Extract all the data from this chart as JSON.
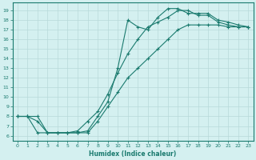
{
  "xlabel": "Humidex (Indice chaleur)",
  "ylabel": "",
  "xlim": [
    -0.5,
    23.5
  ],
  "ylim": [
    5.5,
    19.8
  ],
  "yticks": [
    6,
    7,
    8,
    9,
    10,
    11,
    12,
    13,
    14,
    15,
    16,
    17,
    18,
    19
  ],
  "xticks": [
    0,
    1,
    2,
    3,
    4,
    5,
    6,
    7,
    8,
    9,
    10,
    11,
    12,
    13,
    14,
    15,
    16,
    17,
    18,
    19,
    20,
    21,
    22,
    23
  ],
  "line_color": "#1a7a6e",
  "bg_color": "#d4f0f0",
  "grid_color": "#b8dada",
  "line1_x": [
    0,
    1,
    2,
    3,
    4,
    5,
    6,
    7,
    8,
    9,
    10,
    11,
    12,
    13,
    14,
    15,
    16,
    17,
    18,
    19,
    20,
    21,
    22,
    23
  ],
  "line1_y": [
    8.0,
    8.0,
    8.0,
    6.3,
    6.3,
    6.3,
    6.3,
    6.5,
    8.0,
    9.5,
    13.0,
    18.0,
    17.3,
    17.0,
    18.3,
    19.2,
    19.2,
    18.7,
    18.7,
    18.7,
    18.0,
    17.8,
    17.5,
    17.3
  ],
  "line2_x": [
    0,
    1,
    2,
    3,
    4,
    5,
    6,
    7,
    8,
    9,
    10,
    11,
    12,
    13,
    14,
    15,
    16,
    17,
    18,
    19,
    20,
    21,
    22,
    23
  ],
  "line2_y": [
    8.0,
    8.0,
    7.5,
    6.3,
    6.3,
    6.3,
    6.5,
    7.5,
    8.5,
    10.3,
    12.5,
    14.5,
    16.0,
    17.3,
    17.8,
    18.3,
    19.0,
    19.0,
    18.5,
    18.5,
    17.8,
    17.5,
    17.3,
    17.3
  ],
  "line3_x": [
    0,
    1,
    2,
    3,
    4,
    5,
    6,
    7,
    8,
    9,
    10,
    11,
    12,
    13,
    14,
    15,
    16,
    17,
    18,
    19,
    20,
    21,
    22,
    23
  ],
  "line3_y": [
    8.0,
    8.0,
    6.3,
    6.3,
    6.3,
    6.3,
    6.3,
    6.3,
    7.5,
    9.0,
    10.5,
    12.0,
    13.0,
    14.0,
    15.0,
    16.0,
    17.0,
    17.5,
    17.5,
    17.5,
    17.5,
    17.3,
    17.3,
    17.3
  ]
}
